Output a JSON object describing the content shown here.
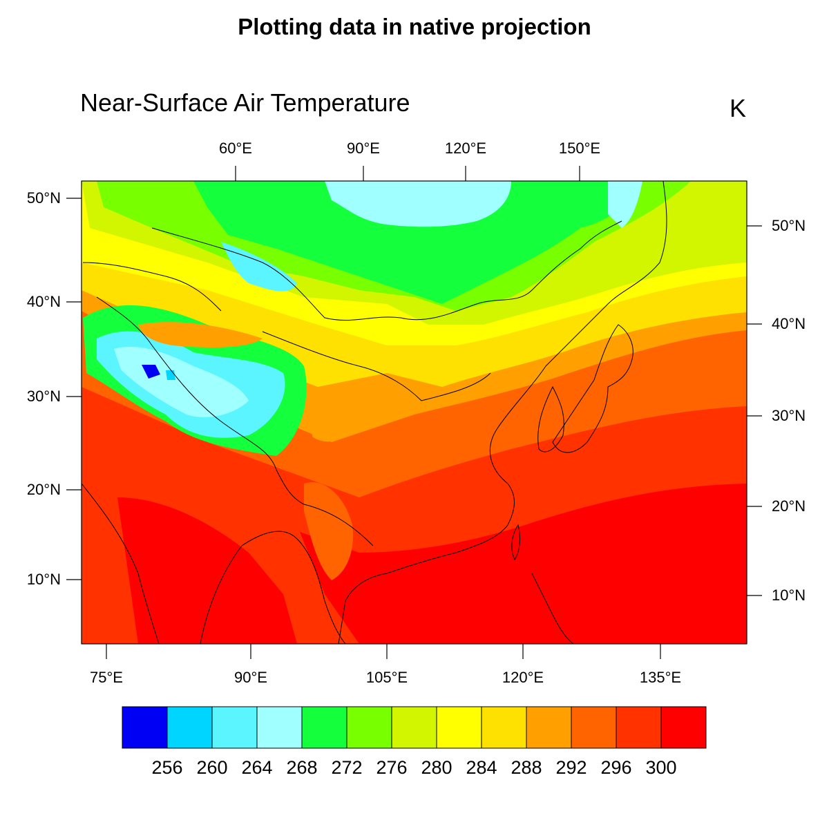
{
  "title": "Plotting data in native projection",
  "left_subtitle": "Near-Surface Air Temperature",
  "right_subtitle": "K",
  "top_lon_labels": [
    "60°E",
    "90°E",
    "120°E",
    "150°E"
  ],
  "bottom_lon_labels": [
    "75°E",
    "90°E",
    "105°E",
    "120°E",
    "135°E"
  ],
  "left_lat_labels": [
    "50°N",
    "40°N",
    "30°N",
    "20°N",
    "10°N"
  ],
  "right_lat_labels": [
    "50°N",
    "40°N",
    "30°N",
    "20°N",
    "10°N"
  ],
  "colorbar": {
    "labels": [
      "256",
      "260",
      "264",
      "268",
      "272",
      "276",
      "280",
      "284",
      "288",
      "292",
      "296",
      "300"
    ],
    "colors": [
      "#0000f5",
      "#00d5ff",
      "#5af5ff",
      "#a0ffff",
      "#14ff3c",
      "#78ff00",
      "#d2f500",
      "#ffff00",
      "#ffe100",
      "#ffa000",
      "#ff6400",
      "#ff3200",
      "#ff0000"
    ]
  },
  "field_colors": {
    "ocean_warm": "#ff0000",
    "warm_1": "#ff3200",
    "warm_2": "#ff6400",
    "mild_1": "#ffa000",
    "mild_2": "#ffe100",
    "mild_3": "#ffff00",
    "cool_1": "#d2f500",
    "cool_2": "#78ff00",
    "cold_1": "#14ff3c",
    "cold_2": "#a0ffff",
    "cold_3": "#5af5ff",
    "cold_4": "#00d5ff",
    "coldest": "#0000f5"
  }
}
